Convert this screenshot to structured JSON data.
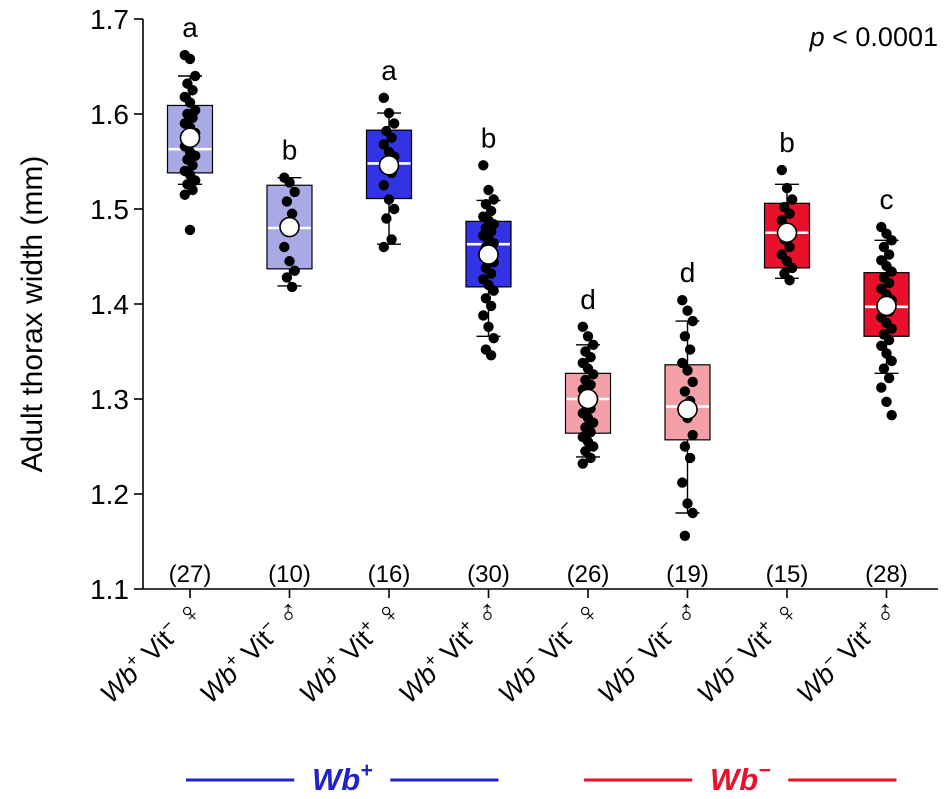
{
  "chart_data": {
    "type": "box",
    "ylabel": "Adult thorax width (mm)",
    "ylim": [
      1.1,
      1.7
    ],
    "yticks": [
      "1.1",
      "1.2",
      "1.3",
      "1.4",
      "1.5",
      "1.6",
      "1.7"
    ],
    "annotation": {
      "italic": "p",
      "text": " < 0.0001"
    },
    "groups": [
      {
        "label_html": [
          "Wb",
          "+",
          " Vit",
          "−",
          " ♀"
        ],
        "n_label": "(27)",
        "letter": "a",
        "color": "#a9a9e6",
        "whisker_low": 1.526,
        "q1": 1.538,
        "median": 1.563,
        "q3": 1.609,
        "whisker_high": 1.64,
        "mean": 1.575,
        "points": [
          1.662,
          1.658,
          1.64,
          1.632,
          1.625,
          1.618,
          1.612,
          1.604,
          1.6,
          1.596,
          1.59,
          1.586,
          1.58,
          1.576,
          1.572,
          1.566,
          1.56,
          1.556,
          1.552,
          1.546,
          1.54,
          1.536,
          1.53,
          1.526,
          1.52,
          1.515,
          1.478
        ]
      },
      {
        "label_html": [
          "Wb",
          "+",
          " Vit",
          "−",
          " ♂"
        ],
        "n_label": "(10)",
        "letter": "b",
        "color": "#a9a9e6",
        "whisker_low": 1.419,
        "q1": 1.437,
        "median": 1.48,
        "q3": 1.525,
        "whisker_high": 1.533,
        "mean": 1.481,
        "points": [
          1.533,
          1.528,
          1.518,
          1.508,
          1.495,
          1.46,
          1.445,
          1.435,
          1.428,
          1.418
        ]
      },
      {
        "label_html": [
          "Wb",
          "+",
          " Vit",
          "+",
          " ♀"
        ],
        "n_label": "(16)",
        "letter": "a",
        "color": "#3333e6",
        "whisker_low": 1.463,
        "q1": 1.511,
        "median": 1.548,
        "q3": 1.583,
        "whisker_high": 1.601,
        "mean": 1.546,
        "points": [
          1.617,
          1.601,
          1.59,
          1.582,
          1.575,
          1.568,
          1.56,
          1.555,
          1.545,
          1.538,
          1.525,
          1.51,
          1.5,
          1.49,
          1.468,
          1.46
        ]
      },
      {
        "label_html": [
          "Wb",
          "+",
          " Vit",
          "+",
          " ♂"
        ],
        "n_label": "(30)",
        "letter": "b",
        "color": "#3333e6",
        "whisker_low": 1.366,
        "q1": 1.418,
        "median": 1.463,
        "q3": 1.487,
        "whisker_high": 1.509,
        "mean": 1.452,
        "points": [
          1.546,
          1.52,
          1.51,
          1.505,
          1.498,
          1.492,
          1.488,
          1.484,
          1.48,
          1.476,
          1.472,
          1.468,
          1.464,
          1.46,
          1.456,
          1.452,
          1.448,
          1.444,
          1.438,
          1.432,
          1.426,
          1.42,
          1.414,
          1.406,
          1.398,
          1.388,
          1.376,
          1.364,
          1.352,
          1.346
        ]
      },
      {
        "label_html": [
          "Wb",
          "−",
          " Vit",
          "−",
          " ♀"
        ],
        "n_label": "(26)",
        "letter": "d",
        "color": "#f4a0a8",
        "whisker_low": 1.239,
        "q1": 1.264,
        "median": 1.3,
        "q3": 1.327,
        "whisker_high": 1.357,
        "mean": 1.3,
        "points": [
          1.376,
          1.366,
          1.357,
          1.35,
          1.344,
          1.338,
          1.332,
          1.326,
          1.32,
          1.315,
          1.31,
          1.305,
          1.3,
          1.295,
          1.29,
          1.285,
          1.28,
          1.275,
          1.27,
          1.265,
          1.26,
          1.255,
          1.25,
          1.245,
          1.238,
          1.232
        ]
      },
      {
        "label_html": [
          "Wb",
          "−",
          " Vit",
          "−",
          " ♂"
        ],
        "n_label": "(19)",
        "letter": "d",
        "color": "#f4a0a8",
        "whisker_low": 1.18,
        "q1": 1.257,
        "median": 1.292,
        "q3": 1.336,
        "whisker_high": 1.382,
        "mean": 1.289,
        "points": [
          1.404,
          1.393,
          1.382,
          1.366,
          1.352,
          1.338,
          1.33,
          1.318,
          1.308,
          1.298,
          1.29,
          1.28,
          1.262,
          1.25,
          1.238,
          1.212,
          1.19,
          1.18,
          1.156
        ]
      },
      {
        "label_html": [
          "Wb",
          "−",
          " Vit",
          "+",
          " ♀"
        ],
        "n_label": "(15)",
        "letter": "b",
        "color": "#e8102a",
        "whisker_low": 1.427,
        "q1": 1.438,
        "median": 1.475,
        "q3": 1.506,
        "whisker_high": 1.526,
        "mean": 1.475,
        "points": [
          1.541,
          1.522,
          1.51,
          1.502,
          1.495,
          1.488,
          1.48,
          1.475,
          1.468,
          1.46,
          1.452,
          1.445,
          1.438,
          1.432,
          1.425
        ]
      },
      {
        "label_html": [
          "Wb",
          "−",
          " Vit",
          "+",
          " ♂"
        ],
        "n_label": "(28)",
        "letter": "c",
        "color": "#e8102a",
        "whisker_low": 1.327,
        "q1": 1.366,
        "median": 1.397,
        "q3": 1.433,
        "whisker_high": 1.467,
        "mean": 1.398,
        "points": [
          1.481,
          1.474,
          1.467,
          1.46,
          1.452,
          1.446,
          1.44,
          1.434,
          1.428,
          1.422,
          1.416,
          1.41,
          1.404,
          1.398,
          1.392,
          1.386,
          1.38,
          1.374,
          1.368,
          1.362,
          1.356,
          1.348,
          1.34,
          1.332,
          1.322,
          1.312,
          1.297,
          1.283
        ]
      }
    ],
    "group_brackets": [
      {
        "label": "Wb",
        "sup": "+",
        "color": "#2222cc",
        "span": [
          0,
          3
        ]
      },
      {
        "label": "Wb",
        "sup": "−",
        "color": "#e8102a",
        "span": [
          4,
          7
        ]
      }
    ]
  }
}
